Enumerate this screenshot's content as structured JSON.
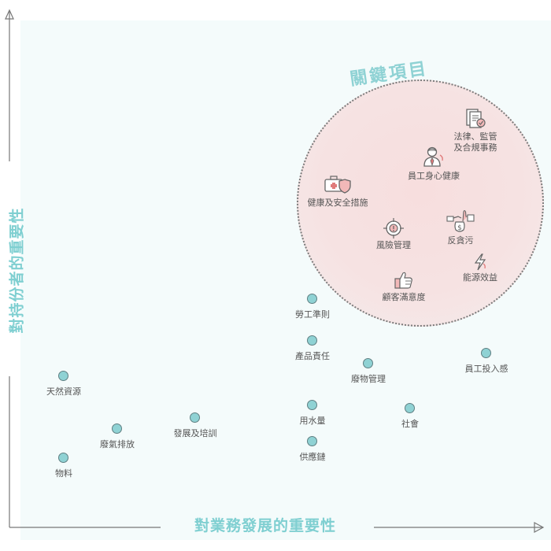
{
  "axes": {
    "x_title": "對業務發展的重要性",
    "y_title": "對持份者的重要性"
  },
  "cluster": {
    "title": "關鍵項目"
  },
  "colors": {
    "accent": "#8fd2d4",
    "cluster_fill": "#f7dede",
    "icon_line": "#666666",
    "icon_accent": "#e07a7a"
  },
  "issues": [
    {
      "label": "勞工準則"
    },
    {
      "label": "產品責任"
    },
    {
      "label": "廢物管理"
    },
    {
      "label": "員工投入感"
    },
    {
      "label": "天然資源"
    },
    {
      "label": "發展及培訓"
    },
    {
      "label": "用水量"
    },
    {
      "label": "社會"
    },
    {
      "label": "廢氣排放"
    },
    {
      "label": "供應鏈"
    },
    {
      "label": "物料"
    }
  ],
  "key_issues": [
    {
      "label_line1": "法律、監管",
      "label_line2": "及合規事務",
      "icon": "document-check-icon"
    },
    {
      "label": "員工身心健康",
      "icon": "employee-icon"
    },
    {
      "label": "健康及安全措施",
      "icon": "first-aid-shield-icon"
    },
    {
      "label": "風險管理",
      "icon": "risk-target-icon"
    },
    {
      "label": "反貪污",
      "icon": "anti-bribery-icon"
    },
    {
      "label": "能源效益",
      "icon": "lightning-icon"
    },
    {
      "label": "顧客滿意度",
      "icon": "thumbs-up-icon"
    }
  ]
}
